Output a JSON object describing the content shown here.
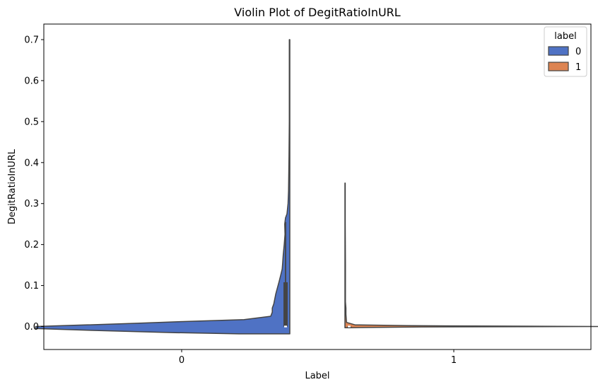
{
  "chart_data": {
    "type": "violin",
    "title": "Violin Plot of DegitRatioInURL",
    "xlabel": "Label",
    "ylabel": "DegitRatioInURL",
    "categories": [
      "0",
      "1"
    ],
    "ylim": [
      -0.055,
      0.73
    ],
    "yticks": [
      "0.0",
      "0.1",
      "0.2",
      "0.3",
      "0.4",
      "0.5",
      "0.6",
      "0.7"
    ],
    "ytick_values": [
      0.0,
      0.1,
      0.2,
      0.3,
      0.4,
      0.5,
      0.6,
      0.7
    ],
    "grid": false,
    "split": true,
    "legend": {
      "title": "label",
      "placement": "top-right",
      "entries": [
        "0",
        "1"
      ]
    },
    "series": [
      {
        "name": "0",
        "color": "#4f72c4",
        "side": "left",
        "category": "0",
        "max": 0.7,
        "quartiles": {
          "q1": 0.0,
          "median": 0.0,
          "q3": 0.108
        },
        "whisker": [
          0.0,
          0.255
        ],
        "density": [
          [
            -0.018,
            0.2
          ],
          [
            -0.015,
            0.45
          ],
          [
            -0.01,
            0.75
          ],
          [
            -0.005,
            1.0
          ],
          [
            0.0,
            1.0
          ],
          [
            0.003,
            0.85
          ],
          [
            0.008,
            0.6
          ],
          [
            0.012,
            0.42
          ],
          [
            0.017,
            0.18
          ],
          [
            0.025,
            0.075
          ],
          [
            0.035,
            0.069
          ],
          [
            0.045,
            0.069
          ],
          [
            0.055,
            0.063
          ],
          [
            0.08,
            0.055
          ],
          [
            0.11,
            0.042
          ],
          [
            0.125,
            0.036
          ],
          [
            0.14,
            0.03
          ],
          [
            0.155,
            0.028
          ],
          [
            0.175,
            0.026
          ],
          [
            0.2,
            0.022
          ],
          [
            0.225,
            0.019
          ],
          [
            0.25,
            0.02
          ],
          [
            0.265,
            0.017
          ],
          [
            0.275,
            0.011
          ],
          [
            0.3,
            0.007
          ],
          [
            0.33,
            0.005
          ],
          [
            0.38,
            0.004
          ],
          [
            0.42,
            0.003
          ],
          [
            0.5,
            0.002
          ],
          [
            0.55,
            0.002
          ],
          [
            0.62,
            0.002
          ],
          [
            0.7,
            0.002
          ]
        ]
      },
      {
        "name": "1",
        "color": "#dd8452",
        "side": "right",
        "category": "1",
        "max": 0.35,
        "quartiles": {
          "q1": 0.0,
          "median": 0.0,
          "q3": 0.0
        },
        "whisker": [
          0.0,
          0.0
        ],
        "density": [
          [
            -0.003,
            0.02
          ],
          [
            -0.001,
            0.3
          ],
          [
            0.0,
            1.0
          ],
          [
            0.001,
            0.6
          ],
          [
            0.002,
            0.25
          ],
          [
            0.004,
            0.04
          ],
          [
            0.01,
            0.006
          ],
          [
            0.03,
            0.004
          ],
          [
            0.045,
            0.004
          ],
          [
            0.06,
            0.002
          ],
          [
            0.15,
            0.002
          ],
          [
            0.25,
            0.001
          ],
          [
            0.35,
            0.001
          ]
        ]
      }
    ]
  }
}
